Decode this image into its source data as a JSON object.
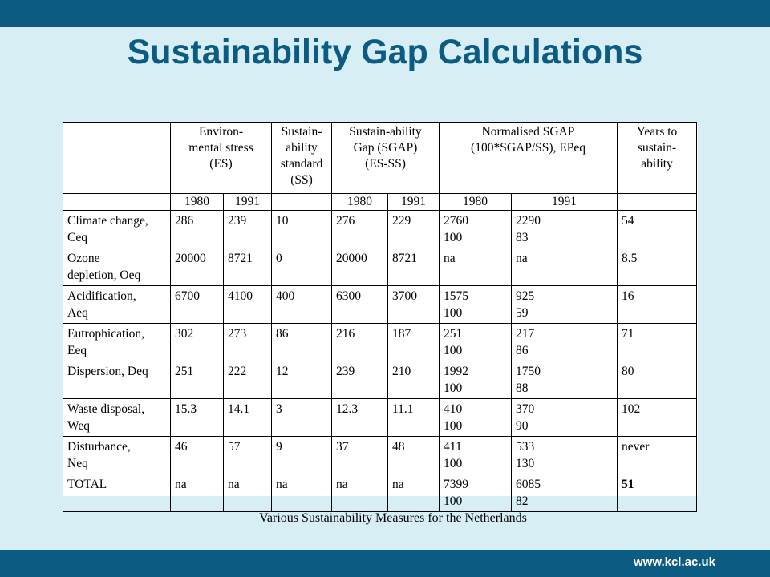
{
  "title": "Sustainability Gap Calculations",
  "table": {
    "headers": {
      "es": "Environ-\nmental stress\n(ES)",
      "ss": "Sustain-\nability\nstandard\n(SS)",
      "sgap": "Sustain-ability\nGap (SGAP)\n(ES-SS)",
      "norm": "Normalised SGAP\n(100*SGAP/SS), EPeq",
      "years": "Years to\nsustain-\nability"
    },
    "years": {
      "es_1980": "1980",
      "es_1991": "1991",
      "sgap_1980": "1980",
      "sgap_1991": "1991",
      "norm_1980": "1980",
      "norm_1991": "1991"
    },
    "rows": [
      {
        "label": "Climate change,\nCeq",
        "es80": "286",
        "es91": "239",
        "ss": "10",
        "g80": "276",
        "g91": "229",
        "n80": "2760\n100",
        "n91": "2290\n83",
        "yrs": "54"
      },
      {
        "label": "Ozone\ndepletion, Oeq",
        "es80": "20000",
        "es91": "8721",
        "ss": "0",
        "g80": "20000",
        "g91": "8721",
        "n80": "na",
        "n91": "na",
        "yrs": "8.5"
      },
      {
        "label": "Acidification,\nAeq",
        "es80": "6700",
        "es91": "4100",
        "ss": "400",
        "g80": "6300",
        "g91": "3700",
        "n80": "1575\n100",
        "n91": "925\n59",
        "yrs": "16"
      },
      {
        "label": "Eutrophication,\nEeq",
        "es80": "302",
        "es91": "273",
        "ss": "86",
        "g80": "216",
        "g91": "187",
        "n80": "251\n100",
        "n91": "217\n86",
        "yrs": "71"
      },
      {
        "label": "Dispersion, Deq",
        "es80": "251",
        "es91": "222",
        "ss": "12",
        "g80": "239",
        "g91": "210",
        "n80": "1992\n100",
        "n91": "1750\n88",
        "yrs": "80"
      },
      {
        "label": "Waste disposal,\nWeq",
        "es80": "15.3",
        "es91": "14.1",
        "ss": "3",
        "g80": "12.3",
        "g91": "11.1",
        "n80": "410\n100",
        "n91": "370\n90",
        "yrs": "102"
      },
      {
        "label": "Disturbance,\nNeq",
        "es80": "46",
        "es91": "57",
        "ss": "9",
        "g80": "37",
        "g91": "48",
        "n80": "411\n100",
        "n91": "533\n130",
        "yrs": "never"
      },
      {
        "label": "TOTAL",
        "es80": "na",
        "es91": "na",
        "ss": "na",
        "g80": "na",
        "g91": "na",
        "n80": "7399\n100",
        "n91": "6085\n82",
        "yrs": "51"
      }
    ]
  },
  "caption": "Various Sustainability Measures for the Netherlands",
  "footer_url": "www.kcl.ac.uk",
  "colors": {
    "bar": "#0b5b83",
    "background": "#d7eef5",
    "title": "#0b5b83"
  }
}
